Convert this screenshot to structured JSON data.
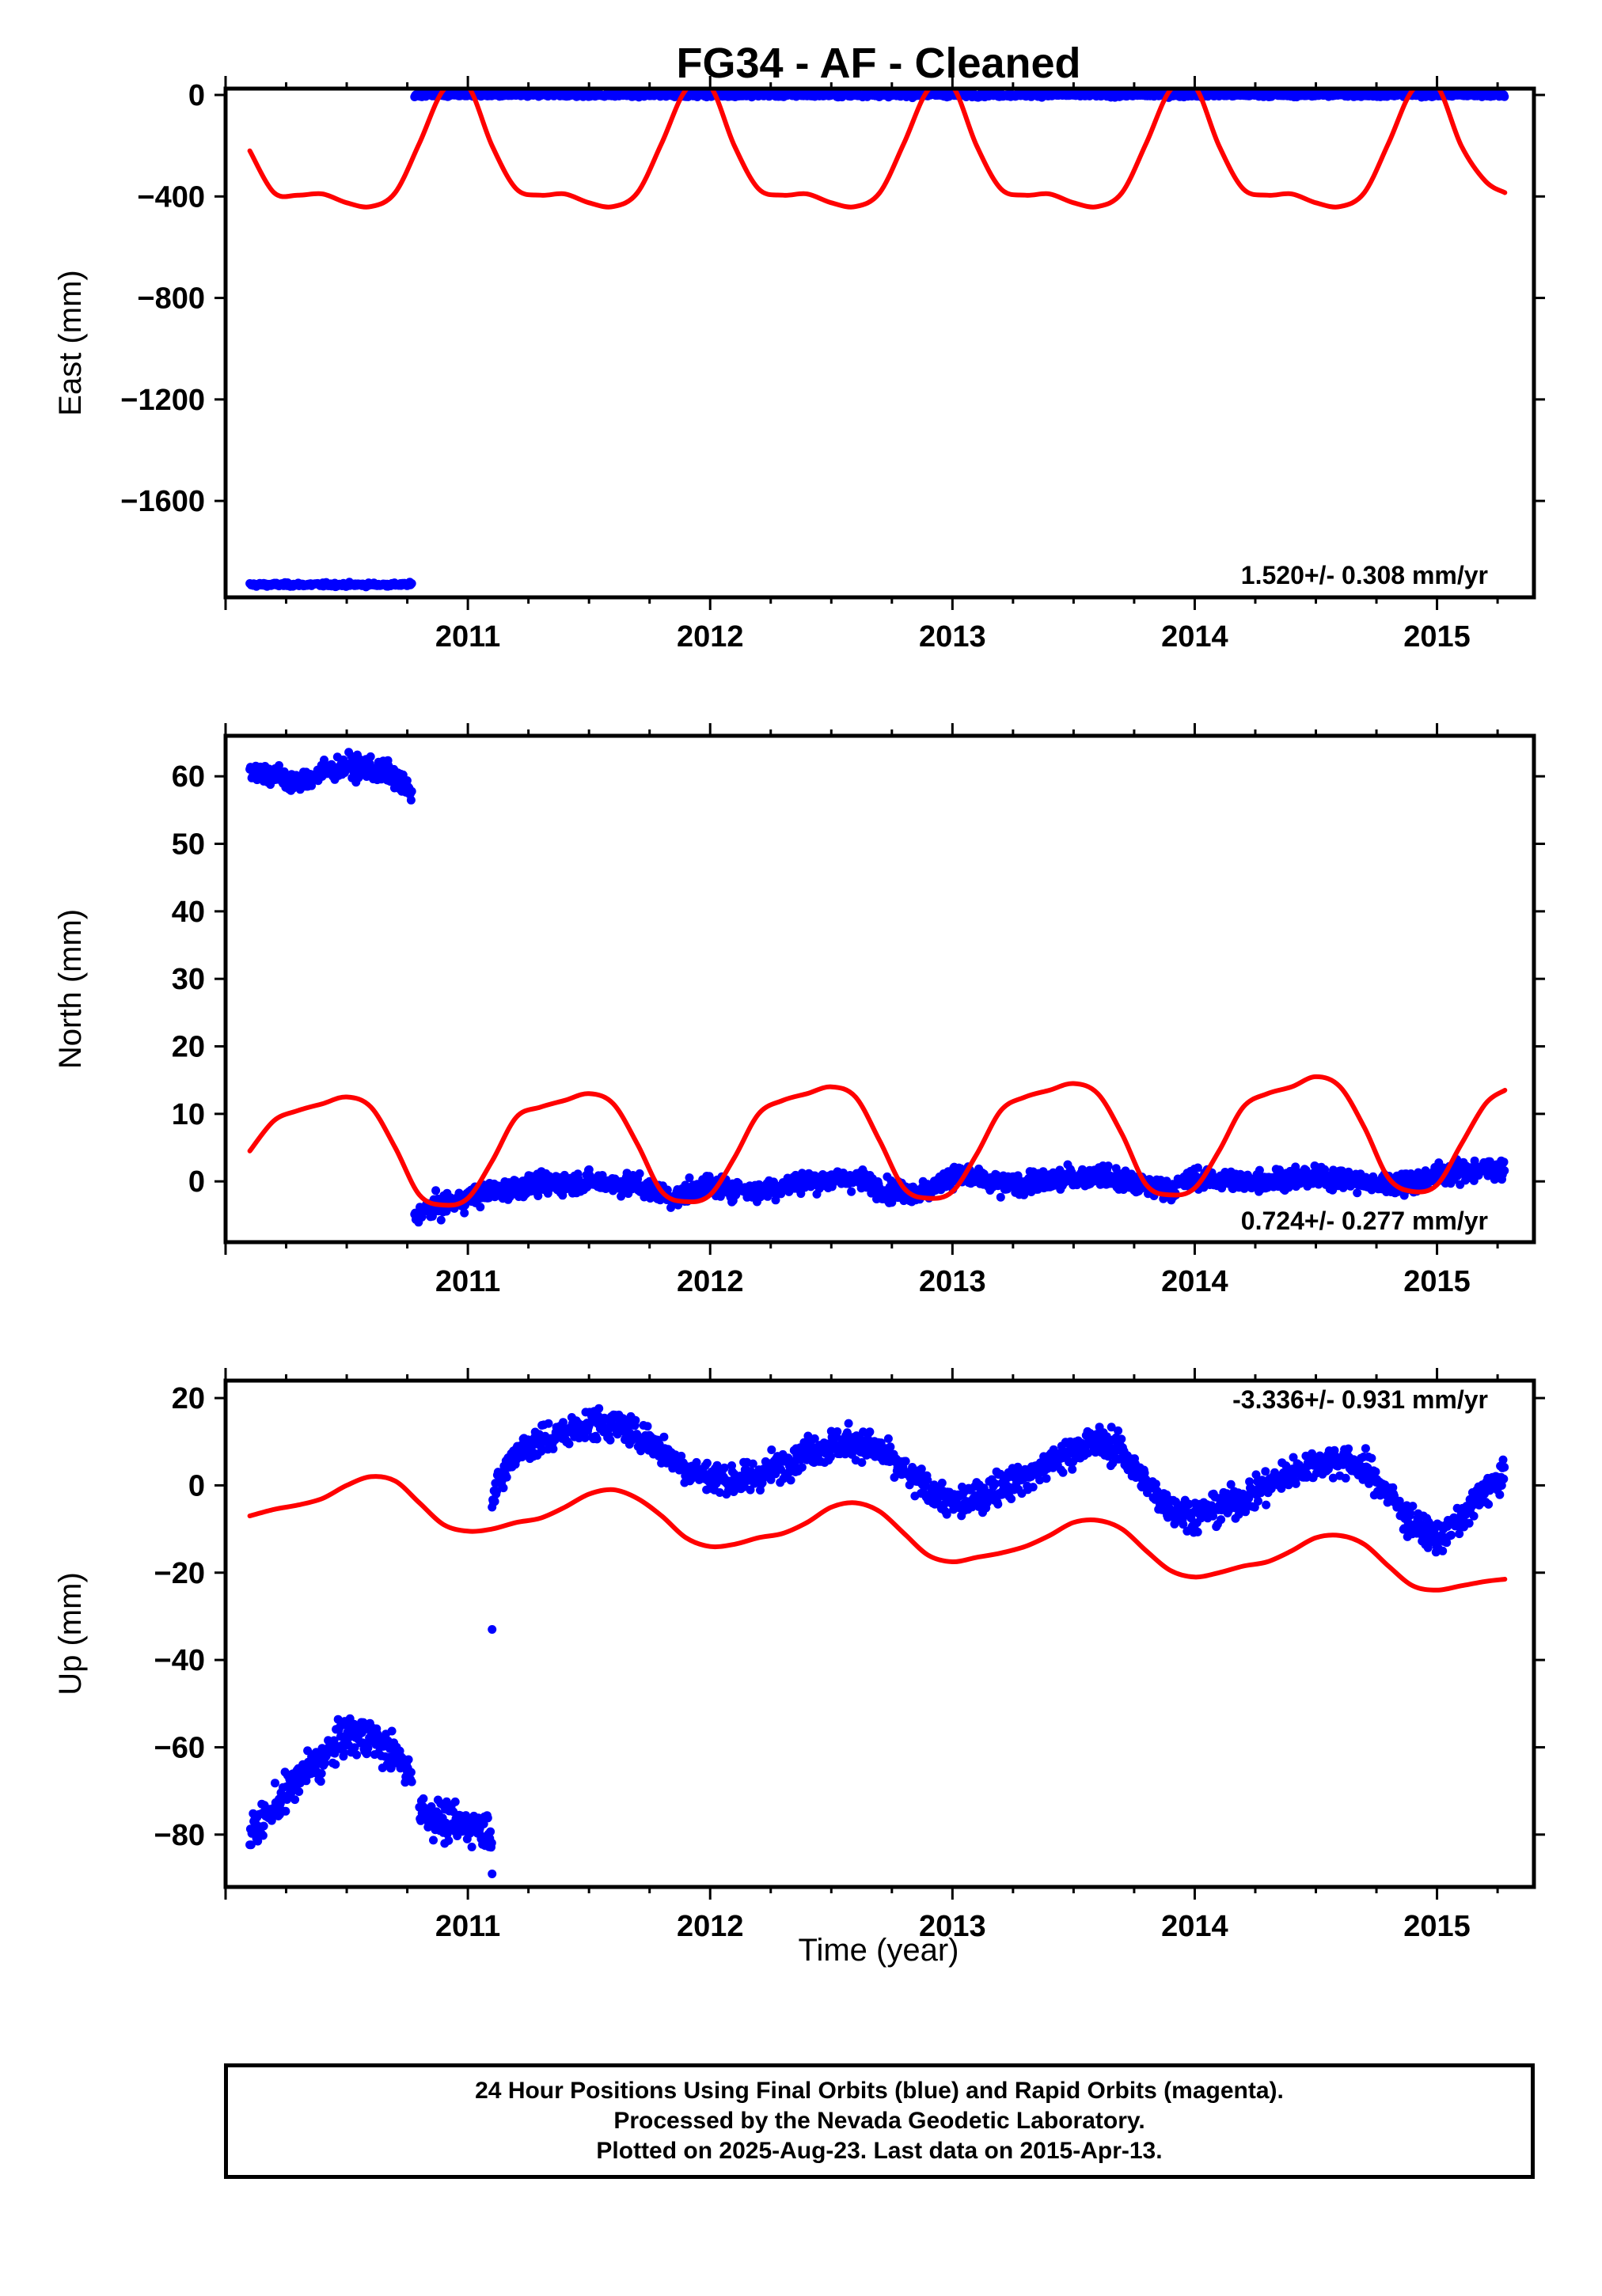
{
  "title": "FG34  - AF - Cleaned",
  "xlabel": "Time (year)",
  "colors": {
    "data": "#0000ff",
    "model": "#ff0000",
    "frame": "#000000"
  },
  "footer": {
    "line1": "24 Hour Positions Using Final Orbits (blue) and Rapid Orbits (magenta).",
    "line2": "Processed by the Nevada Geodetic Laboratory.",
    "line3": "Plotted on 2025-Aug-23. Last data on 2015-Apr-13."
  },
  "chart_data": [
    {
      "type": "scatter",
      "ylabel": "East (mm)",
      "rate": "1.520+/- 0.308 mm/yr",
      "xlim": [
        2010.0,
        2015.4
      ],
      "ylim": [
        -1980,
        25
      ],
      "xticks": [
        2011,
        2012,
        2013,
        2014,
        2015
      ],
      "xtick_labels": [
        "2011",
        "2012",
        "2013",
        "2014",
        "2015"
      ],
      "yticks": [
        0,
        -400,
        -800,
        -1200,
        -1600
      ],
      "ytick_labels": [
        "0",
        "−400",
        "−800",
        "−1200",
        "−1600"
      ],
      "data_segments": [
        {
          "x_start": 2010.1,
          "x_end": 2010.77,
          "y": -1930,
          "noise": 6
        },
        {
          "x_start": 2010.78,
          "x_end": 2015.28,
          "y": 0,
          "noise": 6
        }
      ],
      "model": {
        "x": [
          2010.1,
          2010.2,
          2010.3,
          2010.4,
          2010.5,
          2010.6,
          2010.7,
          2010.8,
          2010.9,
          2011.0,
          2011.1,
          2011.2,
          2011.3,
          2011.4,
          2011.5,
          2011.6,
          2011.7,
          2011.8,
          2011.9,
          2012.0,
          2012.1,
          2012.2,
          2012.3,
          2012.4,
          2012.5,
          2012.6,
          2012.7,
          2012.8,
          2012.9,
          2013.0,
          2013.1,
          2013.2,
          2013.3,
          2013.4,
          2013.5,
          2013.6,
          2013.7,
          2013.8,
          2013.9,
          2014.0,
          2014.1,
          2014.2,
          2014.3,
          2014.4,
          2014.5,
          2014.6,
          2014.7,
          2014.8,
          2014.9,
          2015.0,
          2015.1,
          2015.2,
          2015.28
        ],
        "y": [
          -220,
          -385,
          -395,
          -390,
          -425,
          -440,
          -385,
          -190,
          20,
          35,
          -200,
          -370,
          -395,
          -390,
          -425,
          -440,
          -385,
          -190,
          20,
          35,
          -200,
          -370,
          -395,
          -390,
          -425,
          -440,
          -385,
          -190,
          20,
          35,
          -200,
          -370,
          -395,
          -390,
          -425,
          -440,
          -385,
          -190,
          20,
          35,
          -200,
          -370,
          -395,
          -390,
          -425,
          -440,
          -385,
          -190,
          20,
          35,
          -200,
          -340,
          -385
        ]
      }
    },
    {
      "type": "scatter",
      "ylabel": "North (mm)",
      "rate": "0.724+/- 0.277 mm/yr",
      "xlim": [
        2010.0,
        2015.4
      ],
      "ylim": [
        -9,
        66
      ],
      "xticks": [
        2011,
        2012,
        2013,
        2014,
        2015
      ],
      "xtick_labels": [
        "2011",
        "2012",
        "2013",
        "2014",
        "2015"
      ],
      "yticks": [
        60,
        50,
        40,
        30,
        20,
        10,
        0
      ],
      "ytick_labels": [
        "60",
        "50",
        "40",
        "30",
        "20",
        "10",
        "0"
      ],
      "data_segments": [
        {
          "x": [
            2010.1,
            2010.2,
            2010.3,
            2010.4,
            2010.5,
            2010.6,
            2010.7,
            2010.77
          ],
          "y": [
            61,
            60,
            59,
            60.5,
            61.5,
            61,
            60,
            57
          ],
          "noise": 1.4
        },
        {
          "x": [
            2010.78,
            2010.85,
            2010.95,
            2011.1,
            2011.3,
            2011.5,
            2011.7,
            2011.85,
            2012.0,
            2012.2,
            2012.4,
            2012.6,
            2012.75,
            2012.9,
            2013.0,
            2013.2,
            2013.4,
            2013.6,
            2013.75,
            2013.9,
            2014.0,
            2014.2,
            2014.4,
            2014.6,
            2014.75,
            2014.9,
            2015.0,
            2015.1,
            2015.28
          ],
          "y": [
            -5,
            -4,
            -3,
            -1.5,
            -0.5,
            0,
            -0.5,
            -2.5,
            -0.5,
            -1.5,
            0,
            0.5,
            -1.5,
            -1.5,
            1,
            -0.5,
            0,
            1,
            -0.5,
            -1,
            0.5,
            0,
            0.5,
            0.5,
            -0.5,
            0,
            1,
            1.5,
            2
          ],
          "noise": 1.3
        }
      ],
      "model": {
        "x": [
          2010.1,
          2010.2,
          2010.3,
          2010.4,
          2010.5,
          2010.6,
          2010.7,
          2010.8,
          2010.9,
          2011.0,
          2011.1,
          2011.2,
          2011.3,
          2011.4,
          2011.5,
          2011.6,
          2011.7,
          2011.8,
          2011.9,
          2012.0,
          2012.1,
          2012.2,
          2012.3,
          2012.4,
          2012.5,
          2012.6,
          2012.7,
          2012.8,
          2012.9,
          2013.0,
          2013.1,
          2013.2,
          2013.3,
          2013.4,
          2013.5,
          2013.6,
          2013.7,
          2013.8,
          2013.9,
          2014.0,
          2014.1,
          2014.2,
          2014.3,
          2014.4,
          2014.5,
          2014.6,
          2014.7,
          2014.8,
          2014.9,
          2015.0,
          2015.1,
          2015.2,
          2015.28
        ],
        "y": [
          4.5,
          9,
          10.5,
          11.5,
          12.5,
          11,
          5,
          -2,
          -3.5,
          -2.5,
          3,
          9.5,
          11,
          12,
          13,
          11.5,
          5.5,
          -1.5,
          -3,
          -2,
          3.5,
          10,
          12,
          13,
          14,
          12.5,
          6,
          -1,
          -2.5,
          -1.5,
          4,
          10.5,
          12.5,
          13.5,
          14.5,
          13,
          7,
          -0.5,
          -2,
          -1,
          4.5,
          11,
          13,
          14,
          15.5,
          14,
          8,
          0.5,
          -1.5,
          -0.5,
          5.5,
          11.5,
          13.5
        ]
      }
    },
    {
      "type": "scatter",
      "ylabel": "Up (mm)",
      "rate": "-3.336+/- 0.931 mm/yr",
      "xlim": [
        2010.0,
        2015.4
      ],
      "ylim": [
        -92,
        24
      ],
      "xticks": [
        2011,
        2012,
        2013,
        2014,
        2015
      ],
      "xtick_labels": [
        "2011",
        "2012",
        "2013",
        "2014",
        "2015"
      ],
      "yticks": [
        20,
        0,
        -20,
        -40,
        -60,
        -80
      ],
      "ytick_labels": [
        "20",
        "0",
        "−20",
        "−40",
        "−60",
        "−80"
      ],
      "data_segments": [
        {
          "x": [
            2010.1,
            2010.2,
            2010.3,
            2010.4,
            2010.5,
            2010.6,
            2010.7,
            2010.77
          ],
          "y": [
            -80,
            -74,
            -67,
            -63,
            -57,
            -58,
            -62,
            -66
          ],
          "noise": 3.5
        },
        {
          "x": [
            2010.8,
            2010.9,
            2011.0,
            2011.1
          ],
          "y": [
            -74,
            -77,
            -78,
            -79
          ],
          "noise": 3.5
        },
        {
          "x": [
            2011.1,
            2011.15,
            2011.2,
            2011.3,
            2011.4,
            2011.5,
            2011.6,
            2011.7,
            2011.8,
            2011.9,
            2012.0,
            2012.1,
            2012.2,
            2012.3,
            2012.4,
            2012.5,
            2012.6,
            2012.7,
            2012.8,
            2012.9,
            2013.0,
            2013.1,
            2013.2,
            2013.3,
            2013.4,
            2013.5,
            2013.6,
            2013.7,
            2013.8,
            2013.9,
            2014.0,
            2014.1,
            2014.2,
            2014.3,
            2014.4,
            2014.5,
            2014.6,
            2014.7,
            2014.8,
            2014.9,
            2015.0,
            2015.1,
            2015.2,
            2015.28
          ],
          "y": [
            -3,
            3,
            8,
            10,
            12,
            14,
            14,
            12,
            8,
            4,
            2,
            1,
            2,
            5,
            8,
            9,
            10,
            8,
            3,
            -1,
            -4,
            -3,
            0,
            2,
            5,
            8,
            10,
            8,
            0,
            -5,
            -7,
            -5,
            -3,
            0,
            3,
            5,
            6,
            4,
            -2,
            -9,
            -12,
            -8,
            -1,
            2
          ],
          "noise": 3
        }
      ],
      "outliers": [
        [
          2011.1,
          -33
        ],
        [
          2011.1,
          -89
        ]
      ],
      "model": {
        "x": [
          2010.1,
          2010.2,
          2010.3,
          2010.4,
          2010.5,
          2010.6,
          2010.7,
          2010.8,
          2010.9,
          2011.0,
          2011.1,
          2011.2,
          2011.3,
          2011.4,
          2011.5,
          2011.6,
          2011.7,
          2011.8,
          2011.9,
          2012.0,
          2012.1,
          2012.2,
          2012.3,
          2012.4,
          2012.5,
          2012.6,
          2012.7,
          2012.8,
          2012.9,
          2013.0,
          2013.1,
          2013.2,
          2013.3,
          2013.4,
          2013.5,
          2013.6,
          2013.7,
          2013.8,
          2013.9,
          2014.0,
          2014.1,
          2014.2,
          2014.3,
          2014.4,
          2014.5,
          2014.6,
          2014.7,
          2014.8,
          2014.9,
          2015.0,
          2015.1,
          2015.2,
          2015.28
        ],
        "y": [
          -7,
          -5.5,
          -4.5,
          -3,
          0,
          2,
          1,
          -4,
          -9,
          -10.5,
          -10,
          -8.5,
          -7.5,
          -5,
          -2,
          -1,
          -3,
          -7,
          -12,
          -14,
          -13.5,
          -12,
          -11,
          -8.5,
          -5,
          -4,
          -6,
          -11,
          -16,
          -17.5,
          -16.5,
          -15.5,
          -14,
          -11.5,
          -8.5,
          -8,
          -10,
          -15,
          -19.5,
          -21,
          -20,
          -18.5,
          -17.5,
          -15,
          -12,
          -11.5,
          -13.5,
          -18.5,
          -23,
          -24,
          -23,
          -22,
          -21.5
        ]
      }
    }
  ]
}
